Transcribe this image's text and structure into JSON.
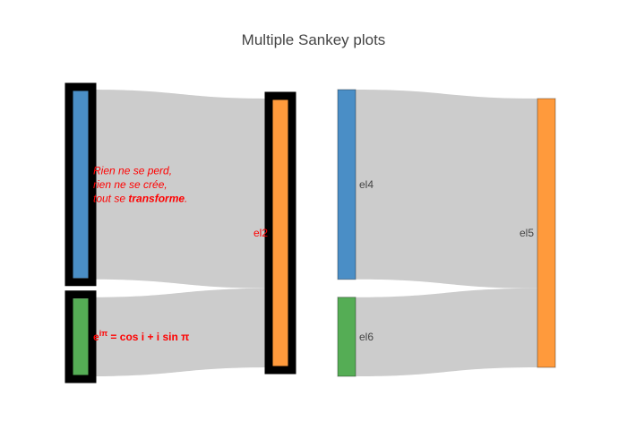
{
  "chart_data": {
    "type": "sankey",
    "title": "Multiple Sankey plots",
    "colors": {
      "blue": "#4a8ec6",
      "green": "#55ad55",
      "orange": "#ff9a3c",
      "link": "#cccccc",
      "node_border_thick": "#000000",
      "node_border_thin": "#5a7a5a",
      "label_red": "#ff0000",
      "label_gray": "#444444"
    },
    "sankeys": [
      {
        "node_border": "thick",
        "nodes": [
          {
            "id": "n1",
            "column": 0,
            "color": "blue",
            "label_lines": [
              "Rien ne se perd,",
              "rien ne se crée,",
              "tout se "
            ],
            "label_strong": "transforme",
            "label_tail": ".",
            "label_style": "rich"
          },
          {
            "id": "n2",
            "column": 1,
            "color": "orange",
            "label": "el2",
            "label_style": "red"
          },
          {
            "id": "n3",
            "column": 0,
            "color": "green",
            "label_math": true,
            "label_style": "math"
          }
        ],
        "links": [
          {
            "source": "n1",
            "target": "n2",
            "value": 3
          },
          {
            "source": "n3",
            "target": "n2",
            "value": 1.25
          }
        ]
      },
      {
        "node_border": "thin",
        "nodes": [
          {
            "id": "m1",
            "column": 0,
            "color": "blue",
            "label": "el4",
            "label_style": "gray"
          },
          {
            "id": "m2",
            "column": 1,
            "color": "orange",
            "label": "el5",
            "label_style": "gray"
          },
          {
            "id": "m3",
            "column": 0,
            "color": "green",
            "label": "el6",
            "label_style": "gray"
          }
        ],
        "links": [
          {
            "source": "m1",
            "target": "m2",
            "value": 3
          },
          {
            "source": "m3",
            "target": "m2",
            "value": 1.25
          }
        ]
      }
    ],
    "math_label": {
      "base": "e",
      "exp": "iπ",
      "rest": " = cos i + i sin π"
    }
  }
}
